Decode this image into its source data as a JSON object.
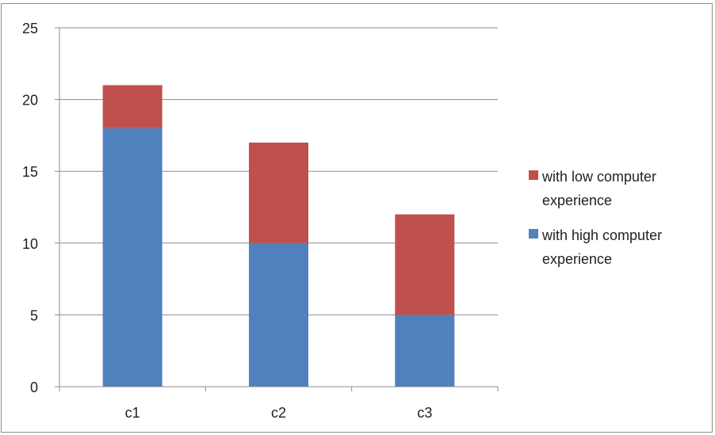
{
  "chart_data": {
    "type": "bar",
    "stacked": true,
    "categories": [
      "c1",
      "c2",
      "c3"
    ],
    "series": [
      {
        "name": "with high computer experience",
        "values": [
          18,
          10,
          5
        ],
        "color": "#4f81bd"
      },
      {
        "name": "with low computer experience",
        "values": [
          3,
          7,
          7
        ],
        "color": "#c0504d"
      }
    ],
    "legend_order": [
      1,
      0
    ],
    "legend_lines": [
      [
        "with low computer",
        "experience"
      ],
      [
        "with high computer",
        "experience"
      ]
    ],
    "title": "",
    "xlabel": "",
    "ylabel": "",
    "ylim": [
      0,
      25
    ],
    "yticks": [
      0,
      5,
      10,
      15,
      20,
      25
    ],
    "grid": true,
    "legend_position": "right"
  }
}
